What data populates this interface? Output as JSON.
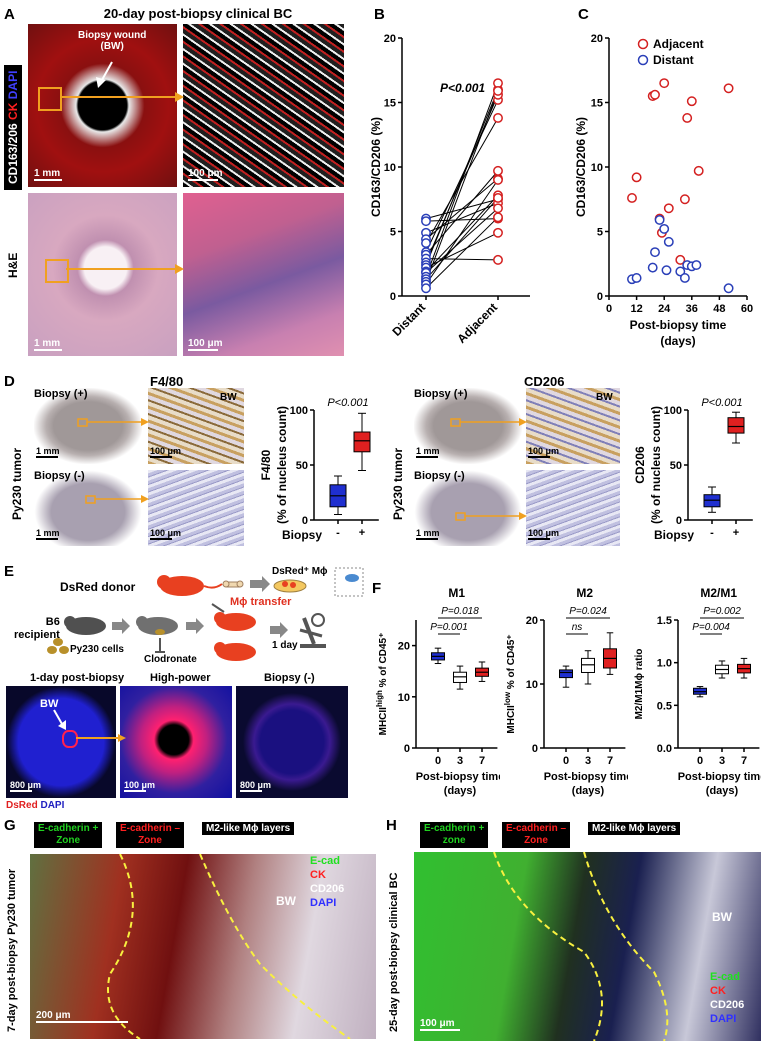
{
  "panel_letters": [
    "A",
    "B",
    "C",
    "D",
    "E",
    "F",
    "G",
    "H"
  ],
  "panelA": {
    "title": "20-day post-biopsy clinical BC",
    "stain_label_parts": [
      "CD163/206",
      "CK",
      "DAPI"
    ],
    "he_label": "H&E",
    "wound_label": "Biopsy wound",
    "wound_sub": "(BW)",
    "scale_1": "1 mm",
    "scale_2": "100 μm",
    "colors": {
      "cd163": "#ffffff",
      "ck": "#e01010",
      "dapi": "#2020e0"
    }
  },
  "panelD": {
    "f480_title": "F4/80",
    "cd206_title": "CD206",
    "biopsy_pos": "Biopsy (+)",
    "biopsy_neg": "Biopsy (-)",
    "bw": "BW",
    "py230": "Py230 tumor",
    "scale_1": "1 mm",
    "scale_2": "100 μm"
  },
  "panelE": {
    "donor": "DsRed donor",
    "mphi": "DsRed⁺ Mϕ",
    "recipient_1": "B6",
    "recipient_2": "recipient",
    "py230": "Py230 cells",
    "clodronate": "Clodronate",
    "transfer": "Mϕ transfer",
    "day": "1 day",
    "img1": "1-day post-biopsy",
    "img2": "High-power",
    "img3": "Biopsy (-)",
    "bw": "BW",
    "scale_1": "800 μm",
    "scale_2": "100 μm",
    "legend_parts": [
      "DsRed",
      "DAPI"
    ]
  },
  "panelG": {
    "tag1": [
      "E-cadherin +",
      "Zone"
    ],
    "tag2": [
      "E-cadherin –",
      "Zone"
    ],
    "tag3": "M2-like Mϕ layers",
    "side": "7-day post-biopsy Py230 tumor",
    "bw": "BW",
    "legend": [
      "E-cad",
      "CK",
      "CD206",
      "DAPI"
    ],
    "scale": "200 μm"
  },
  "panelH": {
    "tag1": [
      "E-cadherin +",
      "zone"
    ],
    "tag2": [
      "E-cadherin –",
      "Zone"
    ],
    "tag3": "M2-like Mϕ layers",
    "side": "25-day post-biopsy clinical BC",
    "bw": "BW",
    "legend": [
      "E-cad",
      "CK",
      "CD206",
      "DAPI"
    ],
    "scale": "100 μm"
  },
  "chart_data": [
    {
      "id": "B",
      "type": "scatter",
      "title": "",
      "xlabel": "",
      "ylabel": "CD163/CD206 (%)",
      "categories": [
        "Distant",
        "Adjacent"
      ],
      "ylim": [
        0,
        20
      ],
      "yticks": [
        0,
        5,
        10,
        15,
        20
      ],
      "annotation": "P<0.001",
      "pairs": [
        [
          6.0,
          7.5
        ],
        [
          5.8,
          6.0
        ],
        [
          4.9,
          7.2
        ],
        [
          4.4,
          9.1
        ],
        [
          4.1,
          13.8
        ],
        [
          3.4,
          15.2
        ],
        [
          3.2,
          9.7
        ],
        [
          2.9,
          2.8
        ],
        [
          2.6,
          15.6
        ],
        [
          2.4,
          16.0
        ],
        [
          2.2,
          4.9
        ],
        [
          1.9,
          7.8
        ],
        [
          1.8,
          6.8
        ],
        [
          1.5,
          16.5
        ],
        [
          1.3,
          7.6
        ],
        [
          1.1,
          15.9
        ],
        [
          0.9,
          9.0
        ],
        [
          0.6,
          6.1
        ]
      ],
      "colors": {
        "distant": "#2a3fb8",
        "adjacent": "#d42020"
      }
    },
    {
      "id": "C",
      "type": "scatter",
      "title": "",
      "xlabel": "Post-biopsy time (days)",
      "ylabel": "CD163/CD206 (%)",
      "xlim": [
        0,
        60
      ],
      "ylim": [
        0,
        20
      ],
      "xticks": [
        0,
        12,
        24,
        36,
        48,
        60
      ],
      "yticks": [
        0,
        5,
        10,
        15,
        20
      ],
      "series": [
        {
          "name": "Adjacent",
          "color": "#d42020",
          "points": [
            [
              10,
              7.6
            ],
            [
              12,
              9.2
            ],
            [
              19,
              15.5
            ],
            [
              20,
              15.6
            ],
            [
              22,
              6.0
            ],
            [
              23,
              4.9
            ],
            [
              24,
              16.5
            ],
            [
              26,
              6.8
            ],
            [
              31,
              2.8
            ],
            [
              33,
              7.5
            ],
            [
              34,
              13.8
            ],
            [
              36,
              15.1
            ],
            [
              39,
              9.7
            ],
            [
              52,
              16.1
            ]
          ]
        },
        {
          "name": "Distant",
          "color": "#2a3fb8",
          "points": [
            [
              10,
              1.3
            ],
            [
              12,
              1.4
            ],
            [
              19,
              2.2
            ],
            [
              20,
              3.4
            ],
            [
              22,
              5.9
            ],
            [
              24,
              5.2
            ],
            [
              25,
              2.0
            ],
            [
              26,
              4.2
            ],
            [
              31,
              1.9
            ],
            [
              33,
              1.4
            ],
            [
              34,
              2.4
            ],
            [
              36,
              2.3
            ],
            [
              38,
              2.4
            ],
            [
              52,
              0.6
            ]
          ]
        }
      ],
      "legend_position": "top-right"
    },
    {
      "id": "D1",
      "type": "box",
      "ylabel": "F4/80 (% of nucleus count)",
      "xlabel": "Biopsy",
      "categories": [
        "-",
        "+"
      ],
      "ylim": [
        0,
        100
      ],
      "yticks": [
        0,
        50,
        100
      ],
      "annotation": "P<0.001",
      "boxes": [
        {
          "name": "-",
          "min": 5,
          "q1": 12,
          "median": 22,
          "q3": 32,
          "max": 40,
          "color": "#1f2fd0"
        },
        {
          "name": "+",
          "min": 45,
          "q1": 62,
          "median": 72,
          "q3": 80,
          "max": 97,
          "color": "#e02020"
        }
      ]
    },
    {
      "id": "D2",
      "type": "box",
      "ylabel": "CD206 (% of nucleus count)",
      "xlabel": "Biopsy",
      "categories": [
        "-",
        "+"
      ],
      "ylim": [
        0,
        100
      ],
      "yticks": [
        0,
        50,
        100
      ],
      "annotation": "P<0.001",
      "boxes": [
        {
          "name": "-",
          "min": 7,
          "q1": 12,
          "median": 18,
          "q3": 23,
          "max": 30,
          "color": "#1f2fd0"
        },
        {
          "name": "+",
          "min": 70,
          "q1": 79,
          "median": 85,
          "q3": 93,
          "max": 98,
          "color": "#e02020"
        }
      ]
    },
    {
      "id": "F1",
      "type": "box",
      "title": "M1",
      "ylabel": "MHCII^high % of CD45⁺",
      "xlabel": "Post-biopsy time (days)",
      "categories": [
        "0",
        "3",
        "7"
      ],
      "ylim": [
        0,
        25
      ],
      "yticks": [
        0,
        10,
        20
      ],
      "annotations": [
        {
          "text": "P=0.018",
          "from": 0,
          "to": 2
        },
        {
          "text": "P=0.001",
          "from": 0,
          "to": 1
        }
      ],
      "boxes": [
        {
          "name": "0",
          "min": 16.5,
          "q1": 17.2,
          "median": 17.9,
          "q3": 18.6,
          "max": 19.5,
          "color": "#1f2fd0"
        },
        {
          "name": "3",
          "min": 11.5,
          "q1": 12.8,
          "median": 13.9,
          "q3": 14.8,
          "max": 16.0,
          "color": "#ffffff"
        },
        {
          "name": "7",
          "min": 13.0,
          "q1": 14.0,
          "median": 14.8,
          "q3": 15.6,
          "max": 16.8,
          "color": "#e02020"
        }
      ]
    },
    {
      "id": "F2",
      "type": "box",
      "title": "M2",
      "ylabel": "MHCII^low % of CD45⁺",
      "xlabel": "Post-biopsy time (days)",
      "categories": [
        "0",
        "3",
        "7"
      ],
      "ylim": [
        0,
        20
      ],
      "yticks": [
        0,
        10,
        20
      ],
      "annotations": [
        {
          "text": "P=0.024",
          "from": 0,
          "to": 2
        },
        {
          "text": "ns",
          "from": 0,
          "to": 1
        }
      ],
      "boxes": [
        {
          "name": "0",
          "min": 9.5,
          "q1": 11.0,
          "median": 11.8,
          "q3": 12.2,
          "max": 12.8,
          "color": "#1f2fd0"
        },
        {
          "name": "3",
          "min": 10.0,
          "q1": 11.8,
          "median": 13.0,
          "q3": 14.0,
          "max": 15.2,
          "color": "#ffffff"
        },
        {
          "name": "7",
          "min": 11.5,
          "q1": 12.5,
          "median": 14.0,
          "q3": 15.5,
          "max": 18.0,
          "color": "#e02020"
        }
      ]
    },
    {
      "id": "F3",
      "type": "box",
      "title": "M2/M1",
      "ylabel": "M2/M1Mϕ ratio",
      "xlabel": "Post-biopsy time (days)",
      "categories": [
        "0",
        "3",
        "7"
      ],
      "ylim": [
        0,
        1.5
      ],
      "yticks": [
        0,
        0.5,
        1.0,
        1.5
      ],
      "annotations": [
        {
          "text": "P=0.002",
          "from": 0,
          "to": 2
        },
        {
          "text": "P=0.004",
          "from": 0,
          "to": 1
        }
      ],
      "boxes": [
        {
          "name": "0",
          "min": 0.6,
          "q1": 0.63,
          "median": 0.66,
          "q3": 0.7,
          "max": 0.72,
          "color": "#1f2fd0"
        },
        {
          "name": "3",
          "min": 0.82,
          "q1": 0.87,
          "median": 0.92,
          "q3": 0.97,
          "max": 1.02,
          "color": "#ffffff"
        },
        {
          "name": "7",
          "min": 0.82,
          "q1": 0.88,
          "median": 0.93,
          "q3": 0.98,
          "max": 1.05,
          "color": "#e02020"
        }
      ]
    }
  ]
}
